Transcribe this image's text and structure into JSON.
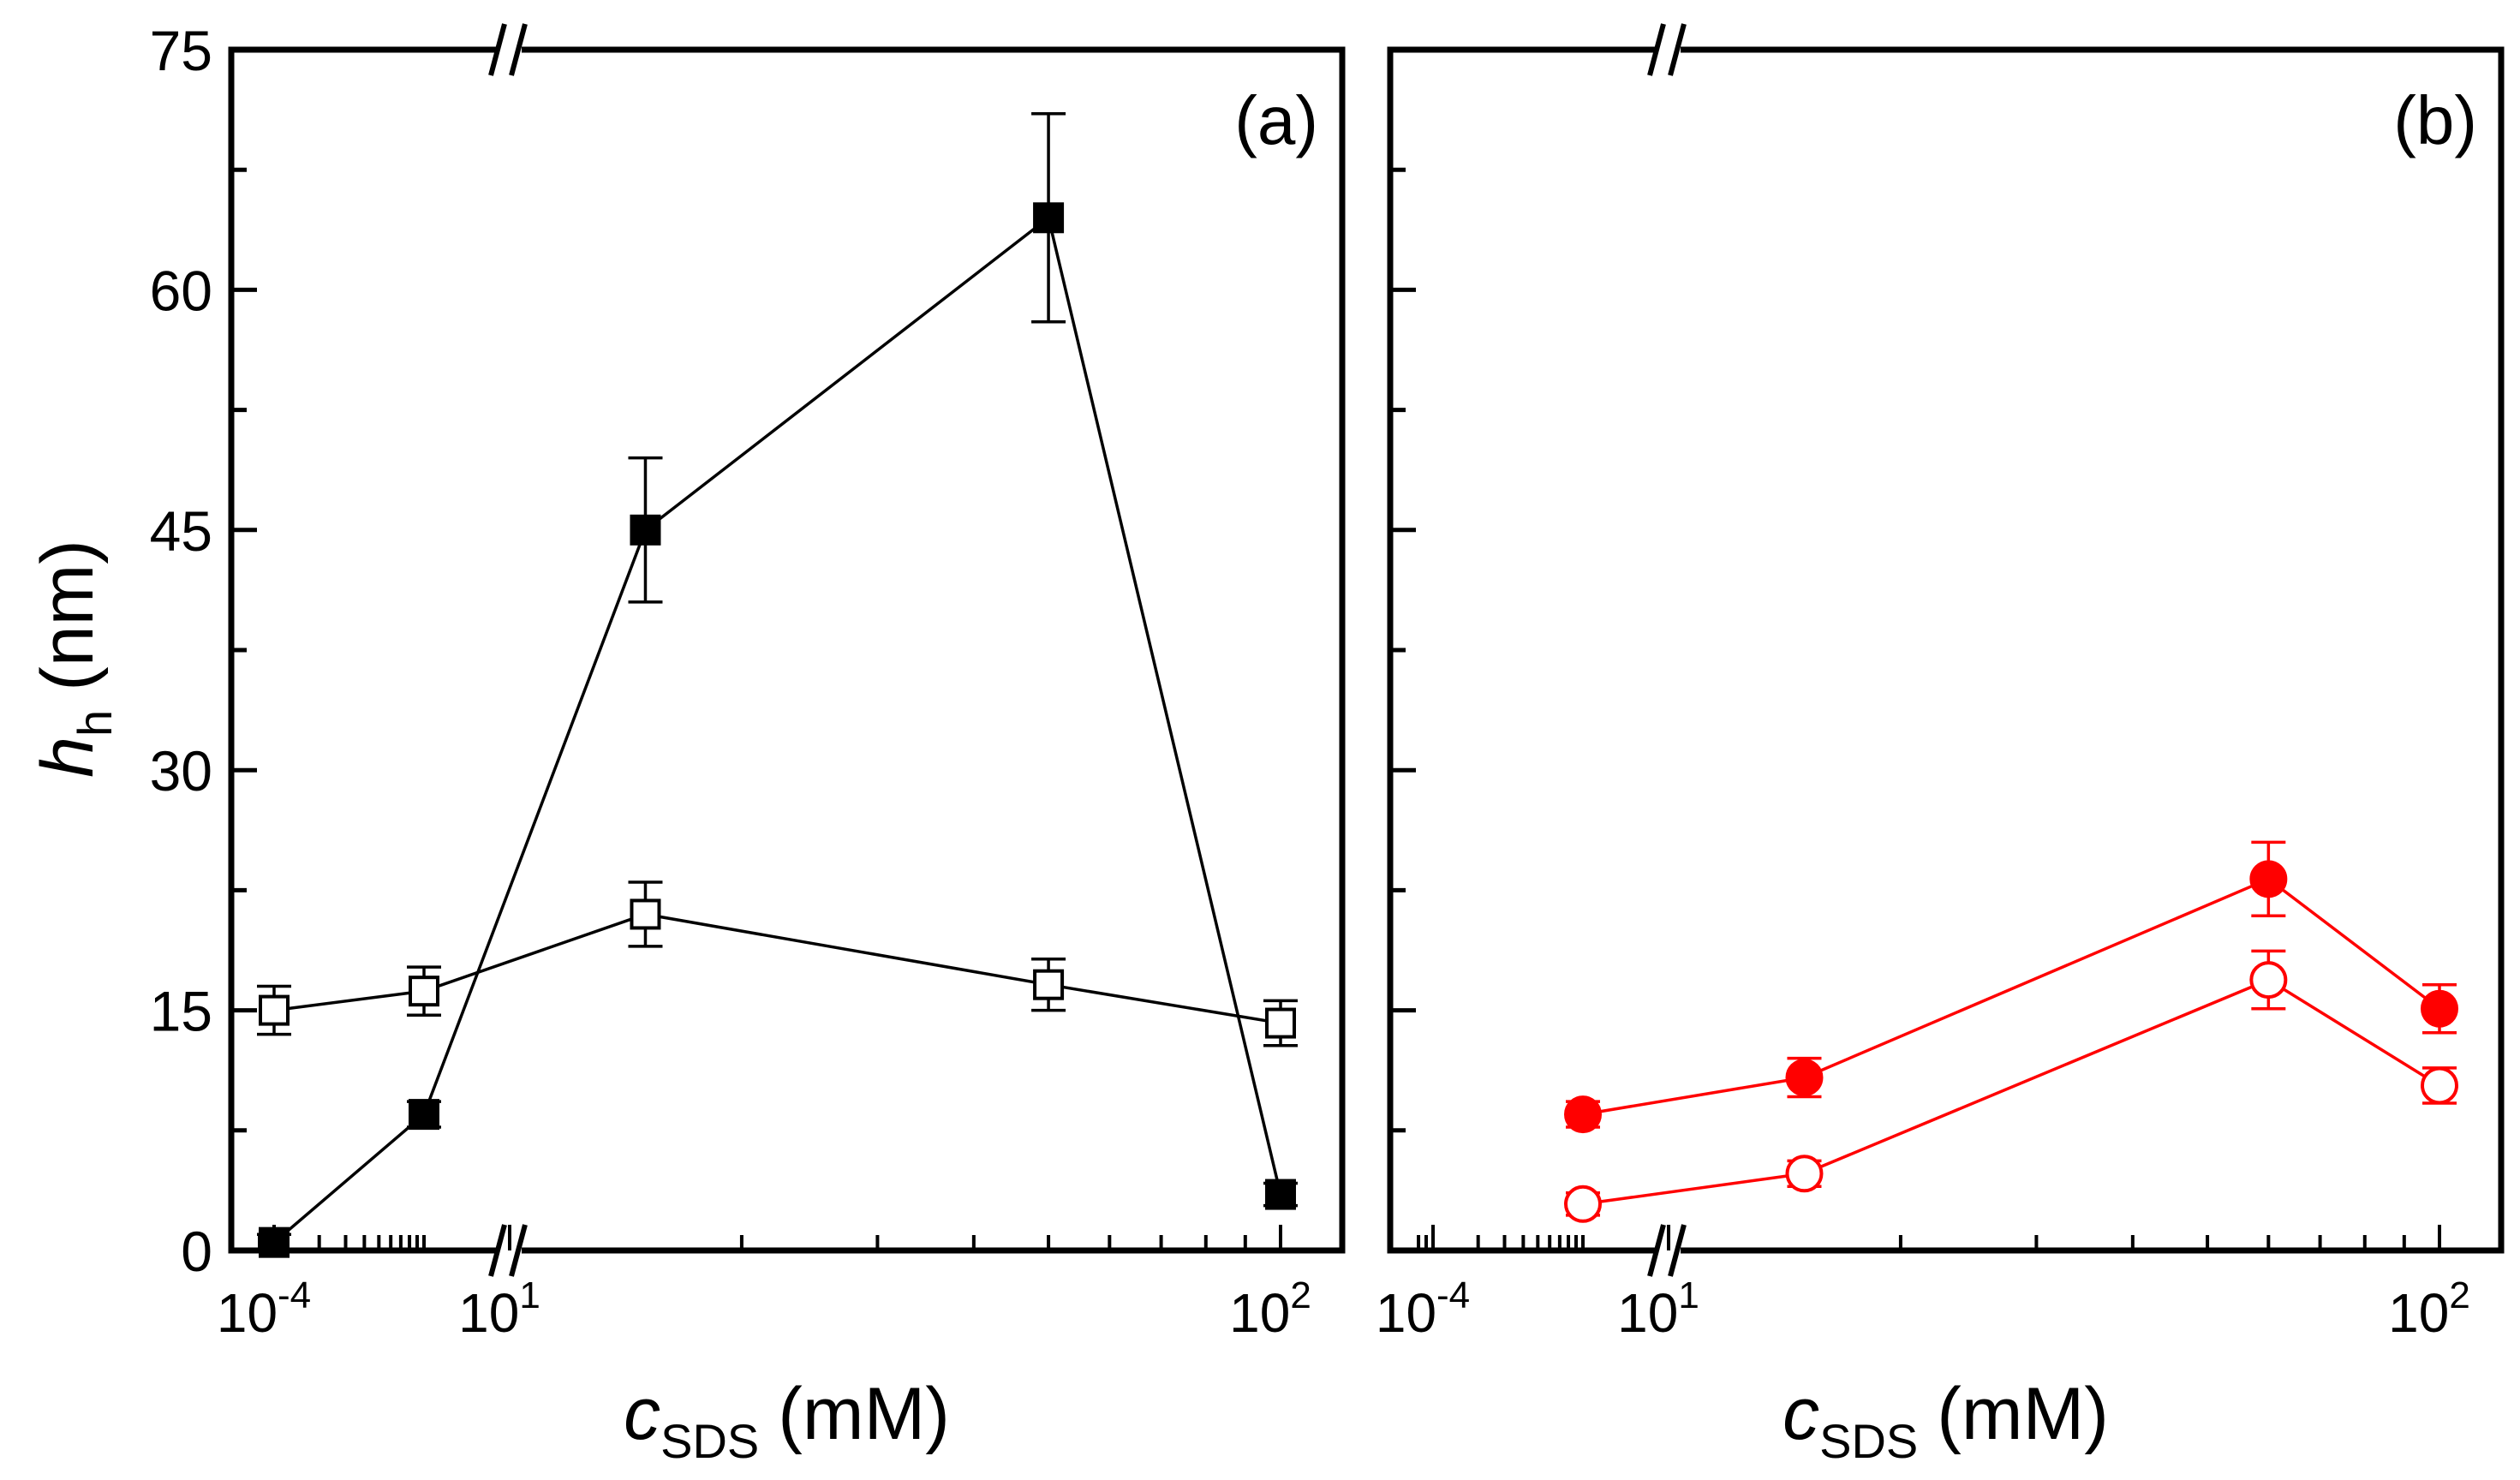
{
  "chart_data": [
    {
      "type": "line",
      "panel_label": "(a)",
      "x_scale": "broken-log",
      "x_ticks": [
        {
          "base": "10",
          "exp": "-4"
        },
        {
          "base": "10",
          "exp": "1"
        },
        {
          "base": "10",
          "exp": "2"
        }
      ],
      "xlabel": {
        "main": "c",
        "sub": "SDS",
        "unit": "(mM)"
      },
      "ylabel": {
        "main": "h",
        "sub": "h",
        "unit": "(nm)"
      },
      "ylim": [
        0,
        75
      ],
      "y_ticks": [
        "0",
        "15",
        "30",
        "45",
        "60",
        "75"
      ],
      "series": [
        {
          "name": "filled squares",
          "marker": "square",
          "fill": "#000000",
          "color": "#000000",
          "points": [
            {
              "x": 0.0001,
              "y": 0.5,
              "err": 0.5
            },
            {
              "x": 0.001,
              "y": 8.5,
              "err": 0.8
            },
            {
              "x": 15,
              "y": 45,
              "err": 4.5
            },
            {
              "x": 50,
              "y": 64.5,
              "err": 6.5
            },
            {
              "x": 100,
              "y": 3.5,
              "err": 0.7
            }
          ]
        },
        {
          "name": "open squares",
          "marker": "square",
          "fill": "#ffffff",
          "color": "#000000",
          "points": [
            {
              "x": 0.0001,
              "y": 15,
              "err": 1.5
            },
            {
              "x": 0.001,
              "y": 16.2,
              "err": 1.5
            },
            {
              "x": 15,
              "y": 21,
              "err": 2
            },
            {
              "x": 50,
              "y": 16.6,
              "err": 1.6
            },
            {
              "x": 100,
              "y": 14.2,
              "err": 1.4
            }
          ]
        }
      ]
    },
    {
      "type": "line",
      "panel_label": "(b)",
      "x_scale": "broken-log",
      "x_ticks": [
        {
          "base": "10",
          "exp": "-4"
        },
        {
          "base": "10",
          "exp": "1"
        },
        {
          "base": "10",
          "exp": "2"
        }
      ],
      "xlabel": {
        "main": "c",
        "sub": "SDS",
        "unit": "(mM)"
      },
      "ylim": [
        0,
        75
      ],
      "series": [
        {
          "name": "filled circles",
          "marker": "circle",
          "fill": "#ff0000",
          "color": "#ff0000",
          "points": [
            {
              "x": 0.001,
              "y": 8.5,
              "err": 0.8
            },
            {
              "x": 15,
              "y": 10.8,
              "err": 1.2
            },
            {
              "x": 60,
              "y": 23.2,
              "err": 2.3
            },
            {
              "x": 100,
              "y": 15.1,
              "err": 1.5
            }
          ]
        },
        {
          "name": "open circles",
          "marker": "circle",
          "fill": "#ffffff",
          "color": "#ff0000",
          "points": [
            {
              "x": 0.001,
              "y": 2.9,
              "err": 0.7
            },
            {
              "x": 15,
              "y": 4.8,
              "err": 0.8
            },
            {
              "x": 60,
              "y": 16.9,
              "err": 1.8
            },
            {
              "x": 100,
              "y": 10.3,
              "err": 1.1
            }
          ]
        }
      ]
    }
  ]
}
